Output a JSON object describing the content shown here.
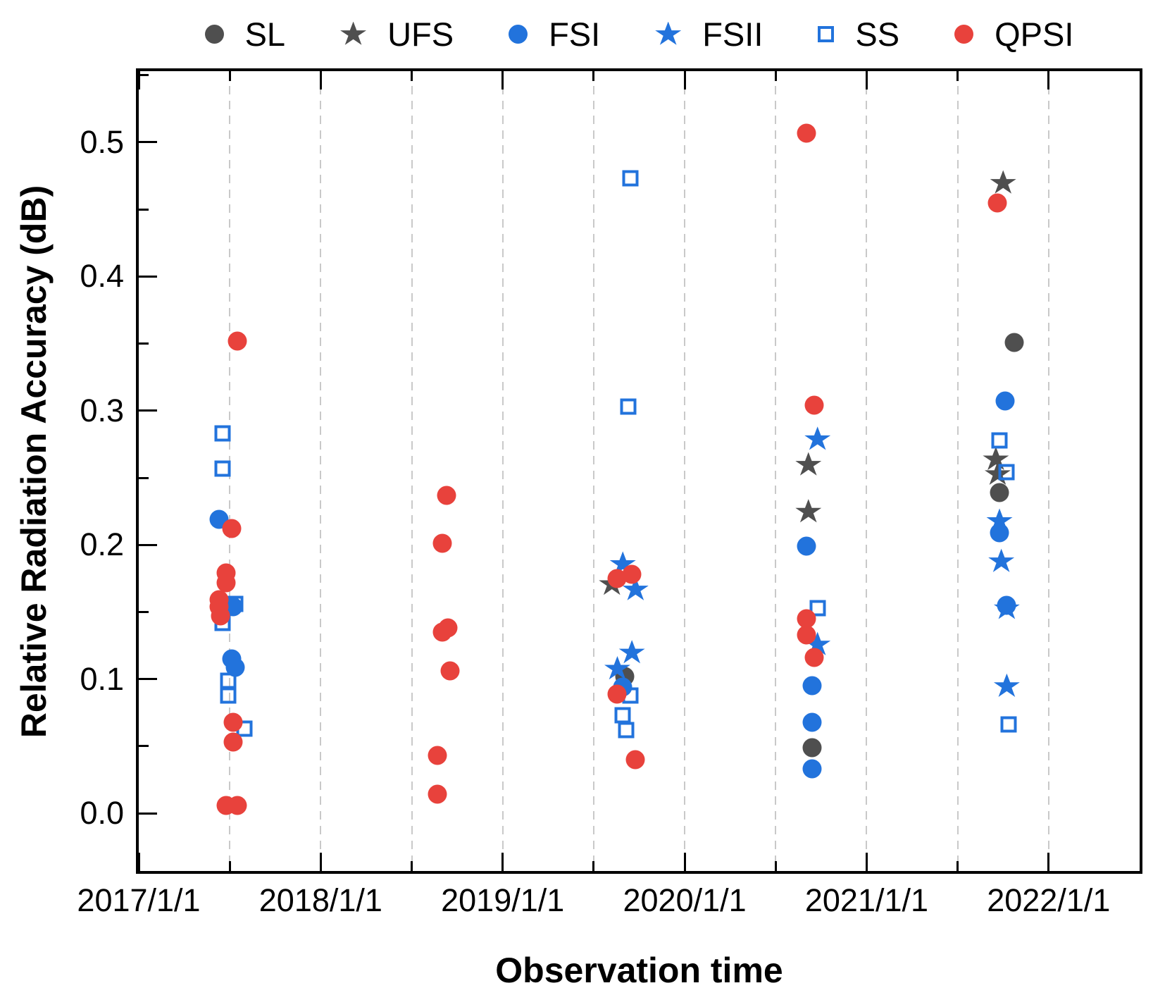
{
  "legend": {
    "items": [
      {
        "label": "SL",
        "marker": "circle",
        "color": "#4F4F4F"
      },
      {
        "label": "UFS",
        "marker": "star",
        "color": "#4F4F4F"
      },
      {
        "label": "FSI",
        "marker": "circle",
        "color": "#2273DC"
      },
      {
        "label": "FSII",
        "marker": "star",
        "color": "#2273DC"
      },
      {
        "label": "SS",
        "marker": "square-open",
        "color": "#2273DC"
      },
      {
        "label": "QPSI",
        "marker": "circle",
        "color": "#E8423C"
      }
    ]
  },
  "axes": {
    "x": {
      "title": "Observation time",
      "major_ticks": [
        2017,
        2018,
        2019,
        2020,
        2021,
        2022
      ],
      "tick_labels": [
        "2017/1/1",
        "2018/1/1",
        "2019/1/1",
        "2020/1/1",
        "2021/1/1",
        "2022/1/1"
      ],
      "minor_ticks": [
        2017.5,
        2018.5,
        2019.5,
        2020.5,
        2021.5
      ],
      "grid_ticks": [
        2017.5,
        2018,
        2018.5,
        2019,
        2019.5,
        2020,
        2020.5,
        2021,
        2021.5,
        2022
      ]
    },
    "y": {
      "title": "Relative Radiation Accuracy (dB)",
      "major_ticks": [
        0.0,
        0.1,
        0.2,
        0.3,
        0.4,
        0.5
      ],
      "tick_labels": [
        "0.0",
        "0.1",
        "0.2",
        "0.3",
        "0.4",
        "0.5"
      ],
      "minor_ticks": [
        0.05,
        0.15,
        0.25,
        0.35,
        0.45,
        0.55
      ]
    }
  },
  "colors": {
    "dark_gray": "#4F4F4F",
    "blue": "#2273DC",
    "red": "#E8423C",
    "grid": "#C9C9C9"
  },
  "chart_data": {
    "type": "scatter",
    "xlabel": "Observation time",
    "ylabel": "Relative Radiation Accuracy (dB)",
    "x_unit": "decimal_year",
    "xlim": [
      2017,
      2022.5
    ],
    "ylim": [
      -0.043,
      0.553
    ],
    "grid": "vertical-dashed-half-year",
    "legend_position": "top",
    "series": [
      {
        "name": "SL",
        "marker": "circle",
        "color": "#4F4F4F",
        "points": [
          [
            2019.67,
            0.102
          ],
          [
            2020.7,
            0.049
          ],
          [
            2021.73,
            0.239
          ],
          [
            2021.81,
            0.351
          ]
        ]
      },
      {
        "name": "UFS",
        "marker": "star",
        "color": "#4F4F4F",
        "points": [
          [
            2019.6,
            0.171
          ],
          [
            2020.68,
            0.26
          ],
          [
            2020.68,
            0.225
          ],
          [
            2021.71,
            0.264
          ],
          [
            2021.72,
            0.253
          ],
          [
            2021.75,
            0.47
          ]
        ]
      },
      {
        "name": "FSII",
        "marker": "star",
        "color": "#2273DC",
        "points": [
          [
            2019.66,
            0.186
          ],
          [
            2019.73,
            0.167
          ],
          [
            2019.71,
            0.12
          ],
          [
            2019.63,
            0.108
          ],
          [
            2020.73,
            0.279
          ],
          [
            2020.73,
            0.126
          ],
          [
            2021.73,
            0.218
          ],
          [
            2021.74,
            0.188
          ],
          [
            2021.77,
            0.153
          ],
          [
            2021.77,
            0.095
          ]
        ]
      },
      {
        "name": "FSI",
        "marker": "circle",
        "color": "#2273DC",
        "points": [
          [
            2017.44,
            0.219
          ],
          [
            2017.52,
            0.154
          ],
          [
            2017.51,
            0.115
          ],
          [
            2017.53,
            0.109
          ],
          [
            2019.66,
            0.094
          ],
          [
            2020.67,
            0.199
          ],
          [
            2020.7,
            0.095
          ],
          [
            2020.7,
            0.068
          ],
          [
            2020.7,
            0.033
          ],
          [
            2021.76,
            0.307
          ],
          [
            2021.73,
            0.209
          ],
          [
            2021.77,
            0.155
          ]
        ]
      },
      {
        "name": "SS",
        "marker": "square-open",
        "color": "#2273DC",
        "points": [
          [
            2017.46,
            0.283
          ],
          [
            2017.46,
            0.257
          ],
          [
            2017.53,
            0.156
          ],
          [
            2017.46,
            0.142
          ],
          [
            2017.49,
            0.099
          ],
          [
            2017.49,
            0.088
          ],
          [
            2017.58,
            0.063
          ],
          [
            2019.7,
            0.473
          ],
          [
            2019.69,
            0.303
          ],
          [
            2019.7,
            0.088
          ],
          [
            2019.66,
            0.073
          ],
          [
            2019.68,
            0.062
          ],
          [
            2020.73,
            0.153
          ],
          [
            2021.73,
            0.278
          ],
          [
            2021.77,
            0.254
          ],
          [
            2021.78,
            0.066
          ]
        ]
      },
      {
        "name": "QPSI",
        "marker": "circle",
        "color": "#E8423C",
        "points": [
          [
            2017.54,
            0.352
          ],
          [
            2017.51,
            0.212
          ],
          [
            2017.48,
            0.179
          ],
          [
            2017.48,
            0.172
          ],
          [
            2017.44,
            0.159
          ],
          [
            2017.44,
            0.154
          ],
          [
            2017.45,
            0.147
          ],
          [
            2017.52,
            0.068
          ],
          [
            2017.52,
            0.053
          ],
          [
            2017.48,
            0.006
          ],
          [
            2017.54,
            0.006
          ],
          [
            2018.69,
            0.237
          ],
          [
            2018.67,
            0.201
          ],
          [
            2018.7,
            0.138
          ],
          [
            2018.67,
            0.135
          ],
          [
            2018.71,
            0.106
          ],
          [
            2018.64,
            0.043
          ],
          [
            2018.64,
            0.014
          ],
          [
            2019.71,
            0.178
          ],
          [
            2019.63,
            0.175
          ],
          [
            2019.63,
            0.089
          ],
          [
            2019.73,
            0.04
          ],
          [
            2020.67,
            0.507
          ],
          [
            2020.71,
            0.304
          ],
          [
            2020.67,
            0.145
          ],
          [
            2020.67,
            0.133
          ],
          [
            2020.71,
            0.116
          ],
          [
            2021.72,
            0.455
          ]
        ]
      }
    ]
  }
}
